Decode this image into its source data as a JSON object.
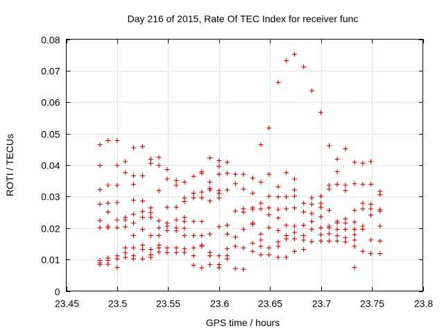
{
  "chart_data": {
    "type": "scatter",
    "title": "Day 216 of 2015, Rate Of TEC Index for receiver func",
    "xlabel": "GPS time / hours",
    "ylabel": "ROTI / TECUs",
    "xlim": [
      23.45,
      23.8
    ],
    "ylim": [
      0,
      0.08
    ],
    "xticks": [
      23.45,
      23.5,
      23.55,
      23.6,
      23.65,
      23.7,
      23.75,
      23.8
    ],
    "xtick_labels": [
      "23.45",
      "23.5",
      "23.55",
      "23.6",
      "23.65",
      "23.7",
      "23.75",
      "23.8"
    ],
    "yticks": [
      0,
      0.01,
      0.02,
      0.03,
      0.04,
      0.05,
      0.06,
      0.07,
      0.08
    ],
    "ytick_labels": [
      "0",
      "0.01",
      "0.02",
      "0.03",
      "0.04",
      "0.05",
      "0.06",
      "0.07",
      "0.08"
    ],
    "grid": true,
    "marker": "+",
    "color": "#cc0000",
    "series": [
      {
        "name": "ROTI",
        "points": [
          [
            23.483,
            0.0465
          ],
          [
            23.483,
            0.0399
          ],
          [
            23.483,
            0.0322
          ],
          [
            23.483,
            0.0276
          ],
          [
            23.483,
            0.0224
          ],
          [
            23.483,
            0.0201
          ],
          [
            23.483,
            0.0097
          ],
          [
            23.483,
            0.0089
          ],
          [
            23.483,
            0.0084
          ],
          [
            23.491,
            0.0478
          ],
          [
            23.491,
            0.0336
          ],
          [
            23.491,
            0.0279
          ],
          [
            23.491,
            0.0251
          ],
          [
            23.491,
            0.0206
          ],
          [
            23.491,
            0.0201
          ],
          [
            23.491,
            0.0105
          ],
          [
            23.491,
            0.0097
          ],
          [
            23.491,
            0.0085
          ],
          [
            23.5,
            0.0478
          ],
          [
            23.5,
            0.0399
          ],
          [
            23.5,
            0.0336
          ],
          [
            23.5,
            0.0281
          ],
          [
            23.5,
            0.0226
          ],
          [
            23.5,
            0.0201
          ],
          [
            23.5,
            0.0112
          ],
          [
            23.5,
            0.0102
          ],
          [
            23.5,
            0.0075
          ],
          [
            23.508,
            0.0411
          ],
          [
            23.508,
            0.0376
          ],
          [
            23.508,
            0.0234
          ],
          [
            23.508,
            0.0226
          ],
          [
            23.508,
            0.0204
          ],
          [
            23.508,
            0.0137
          ],
          [
            23.508,
            0.0122
          ],
          [
            23.508,
            0.0107
          ],
          [
            23.516,
            0.0455
          ],
          [
            23.516,
            0.0366
          ],
          [
            23.516,
            0.0339
          ],
          [
            23.516,
            0.0289
          ],
          [
            23.516,
            0.0244
          ],
          [
            23.516,
            0.0216
          ],
          [
            23.516,
            0.0176
          ],
          [
            23.516,
            0.0137
          ],
          [
            23.516,
            0.0112
          ],
          [
            23.516,
            0.0102
          ],
          [
            23.525,
            0.0459
          ],
          [
            23.525,
            0.0366
          ],
          [
            23.525,
            0.0286
          ],
          [
            23.525,
            0.0253
          ],
          [
            23.525,
            0.0234
          ],
          [
            23.525,
            0.0196
          ],
          [
            23.525,
            0.0146
          ],
          [
            23.525,
            0.0132
          ],
          [
            23.525,
            0.0102
          ],
          [
            23.533,
            0.0419
          ],
          [
            23.533,
            0.0406
          ],
          [
            23.533,
            0.0264
          ],
          [
            23.533,
            0.0249
          ],
          [
            23.533,
            0.0234
          ],
          [
            23.533,
            0.0176
          ],
          [
            23.533,
            0.0132
          ],
          [
            23.533,
            0.0115
          ],
          [
            23.533,
            0.0107
          ],
          [
            23.541,
            0.0425
          ],
          [
            23.541,
            0.0399
          ],
          [
            23.541,
            0.0319
          ],
          [
            23.541,
            0.0223
          ],
          [
            23.541,
            0.0201
          ],
          [
            23.541,
            0.0176
          ],
          [
            23.541,
            0.0146
          ],
          [
            23.541,
            0.0137
          ],
          [
            23.541,
            0.0124
          ],
          [
            23.549,
            0.0386
          ],
          [
            23.549,
            0.0356
          ],
          [
            23.549,
            0.0266
          ],
          [
            23.549,
            0.0216
          ],
          [
            23.549,
            0.0206
          ],
          [
            23.549,
            0.0192
          ],
          [
            23.549,
            0.0137
          ],
          [
            23.549,
            0.0122
          ],
          [
            23.558,
            0.0351
          ],
          [
            23.558,
            0.0336
          ],
          [
            23.558,
            0.0266
          ],
          [
            23.558,
            0.0226
          ],
          [
            23.558,
            0.0201
          ],
          [
            23.558,
            0.0191
          ],
          [
            23.558,
            0.0137
          ],
          [
            23.558,
            0.0122
          ],
          [
            23.566,
            0.0346
          ],
          [
            23.566,
            0.0296
          ],
          [
            23.566,
            0.0284
          ],
          [
            23.566,
            0.0234
          ],
          [
            23.566,
            0.0221
          ],
          [
            23.566,
            0.0199
          ],
          [
            23.566,
            0.0176
          ],
          [
            23.566,
            0.0134
          ],
          [
            23.566,
            0.0122
          ],
          [
            23.575,
            0.0364
          ],
          [
            23.575,
            0.0311
          ],
          [
            23.575,
            0.0296
          ],
          [
            23.575,
            0.0221
          ],
          [
            23.575,
            0.0176
          ],
          [
            23.575,
            0.0137
          ],
          [
            23.575,
            0.0112
          ],
          [
            23.575,
            0.0082
          ],
          [
            23.583,
            0.0379
          ],
          [
            23.583,
            0.0374
          ],
          [
            23.583,
            0.0314
          ],
          [
            23.583,
            0.0296
          ],
          [
            23.583,
            0.0221
          ],
          [
            23.583,
            0.0176
          ],
          [
            23.583,
            0.0146
          ],
          [
            23.583,
            0.0142
          ],
          [
            23.583,
            0.0074
          ],
          [
            23.591,
            0.0423
          ],
          [
            23.591,
            0.0346
          ],
          [
            23.591,
            0.0326
          ],
          [
            23.591,
            0.0321
          ],
          [
            23.591,
            0.0286
          ],
          [
            23.591,
            0.0181
          ],
          [
            23.591,
            0.0122
          ],
          [
            23.591,
            0.0112
          ],
          [
            23.591,
            0.0084
          ],
          [
            23.6,
            0.0414
          ],
          [
            23.6,
            0.0396
          ],
          [
            23.6,
            0.0371
          ],
          [
            23.6,
            0.0319
          ],
          [
            23.6,
            0.0311
          ],
          [
            23.6,
            0.0296
          ],
          [
            23.6,
            0.0204
          ],
          [
            23.6,
            0.0112
          ],
          [
            23.6,
            0.0084
          ],
          [
            23.6,
            0.0074
          ],
          [
            23.608,
            0.0409
          ],
          [
            23.608,
            0.0374
          ],
          [
            23.608,
            0.0321
          ],
          [
            23.608,
            0.0209
          ],
          [
            23.608,
            0.0181
          ],
          [
            23.608,
            0.0134
          ],
          [
            23.608,
            0.0112
          ],
          [
            23.608,
            0.0102
          ],
          [
            23.616,
            0.0371
          ],
          [
            23.616,
            0.0341
          ],
          [
            23.616,
            0.0254
          ],
          [
            23.616,
            0.0171
          ],
          [
            23.616,
            0.0142
          ],
          [
            23.616,
            0.0071
          ],
          [
            23.624,
            0.0371
          ],
          [
            23.624,
            0.0324
          ],
          [
            23.624,
            0.0261
          ],
          [
            23.624,
            0.0251
          ],
          [
            23.624,
            0.0196
          ],
          [
            23.624,
            0.0137
          ],
          [
            23.624,
            0.0069
          ],
          [
            23.633,
            0.0359
          ],
          [
            23.633,
            0.0311
          ],
          [
            23.633,
            0.0264
          ],
          [
            23.633,
            0.0259
          ],
          [
            23.633,
            0.0216
          ],
          [
            23.633,
            0.0212
          ],
          [
            23.633,
            0.0152
          ],
          [
            23.633,
            0.0126
          ],
          [
            23.641,
            0.0465
          ],
          [
            23.641,
            0.0346
          ],
          [
            23.641,
            0.0279
          ],
          [
            23.641,
            0.0261
          ],
          [
            23.641,
            0.0181
          ],
          [
            23.641,
            0.0162
          ],
          [
            23.641,
            0.0142
          ],
          [
            23.641,
            0.0115
          ],
          [
            23.649,
            0.0518
          ],
          [
            23.649,
            0.0371
          ],
          [
            23.649,
            0.0301
          ],
          [
            23.649,
            0.0264
          ],
          [
            23.649,
            0.0242
          ],
          [
            23.649,
            0.0201
          ],
          [
            23.649,
            0.0137
          ],
          [
            23.649,
            0.0115
          ],
          [
            23.658,
            0.0663
          ],
          [
            23.658,
            0.0331
          ],
          [
            23.658,
            0.0299
          ],
          [
            23.658,
            0.0259
          ],
          [
            23.658,
            0.0232
          ],
          [
            23.658,
            0.0192
          ],
          [
            23.658,
            0.0156
          ],
          [
            23.658,
            0.0142
          ],
          [
            23.658,
            0.0107
          ],
          [
            23.666,
            0.0732
          ],
          [
            23.666,
            0.0376
          ],
          [
            23.666,
            0.0299
          ],
          [
            23.666,
            0.0261
          ],
          [
            23.666,
            0.0209
          ],
          [
            23.666,
            0.0176
          ],
          [
            23.666,
            0.0166
          ],
          [
            23.666,
            0.0107
          ],
          [
            23.674,
            0.0752
          ],
          [
            23.674,
            0.0356
          ],
          [
            23.674,
            0.0321
          ],
          [
            23.674,
            0.0301
          ],
          [
            23.674,
            0.0264
          ],
          [
            23.674,
            0.0206
          ],
          [
            23.674,
            0.0186
          ],
          [
            23.674,
            0.0166
          ],
          [
            23.674,
            0.0126
          ],
          [
            23.683,
            0.0712
          ],
          [
            23.683,
            0.0279
          ],
          [
            23.683,
            0.0251
          ],
          [
            23.683,
            0.0209
          ],
          [
            23.683,
            0.0176
          ],
          [
            23.683,
            0.0162
          ],
          [
            23.683,
            0.0132
          ],
          [
            23.691,
            0.0636
          ],
          [
            23.691,
            0.0296
          ],
          [
            23.691,
            0.0276
          ],
          [
            23.691,
            0.0246
          ],
          [
            23.691,
            0.0221
          ],
          [
            23.691,
            0.0196
          ],
          [
            23.691,
            0.0157
          ],
          [
            23.7,
            0.0567
          ],
          [
            23.7,
            0.0301
          ],
          [
            23.7,
            0.0279
          ],
          [
            23.7,
            0.0266
          ],
          [
            23.7,
            0.0236
          ],
          [
            23.7,
            0.0201
          ],
          [
            23.7,
            0.0179
          ],
          [
            23.7,
            0.0159
          ],
          [
            23.708,
            0.0462
          ],
          [
            23.708,
            0.0336
          ],
          [
            23.708,
            0.0324
          ],
          [
            23.708,
            0.0256
          ],
          [
            23.708,
            0.0206
          ],
          [
            23.708,
            0.0201
          ],
          [
            23.708,
            0.0182
          ],
          [
            23.708,
            0.0159
          ],
          [
            23.716,
            0.0419
          ],
          [
            23.716,
            0.0379
          ],
          [
            23.716,
            0.0339
          ],
          [
            23.716,
            0.0221
          ],
          [
            23.716,
            0.0216
          ],
          [
            23.716,
            0.0196
          ],
          [
            23.716,
            0.0176
          ],
          [
            23.716,
            0.0159
          ],
          [
            23.724,
            0.0452
          ],
          [
            23.724,
            0.0336
          ],
          [
            23.724,
            0.0319
          ],
          [
            23.724,
            0.0229
          ],
          [
            23.724,
            0.0216
          ],
          [
            23.724,
            0.0196
          ],
          [
            23.724,
            0.0169
          ],
          [
            23.724,
            0.0156
          ],
          [
            23.733,
            0.0409
          ],
          [
            23.733,
            0.0341
          ],
          [
            23.733,
            0.0256
          ],
          [
            23.733,
            0.0219
          ],
          [
            23.733,
            0.0196
          ],
          [
            23.733,
            0.0179
          ],
          [
            23.733,
            0.0162
          ],
          [
            23.733,
            0.0142
          ],
          [
            23.733,
            0.0075
          ],
          [
            23.741,
            0.0406
          ],
          [
            23.741,
            0.0339
          ],
          [
            23.741,
            0.0279
          ],
          [
            23.741,
            0.0261
          ],
          [
            23.741,
            0.0206
          ],
          [
            23.741,
            0.0196
          ],
          [
            23.741,
            0.0126
          ],
          [
            23.749,
            0.0411
          ],
          [
            23.749,
            0.0339
          ],
          [
            23.749,
            0.0276
          ],
          [
            23.749,
            0.0261
          ],
          [
            23.749,
            0.0241
          ],
          [
            23.749,
            0.0162
          ],
          [
            23.749,
            0.0119
          ],
          [
            23.758,
            0.0316
          ],
          [
            23.758,
            0.0306
          ],
          [
            23.758,
            0.0259
          ],
          [
            23.758,
            0.0254
          ],
          [
            23.758,
            0.0206
          ],
          [
            23.758,
            0.0159
          ],
          [
            23.758,
            0.0119
          ]
        ]
      }
    ]
  }
}
